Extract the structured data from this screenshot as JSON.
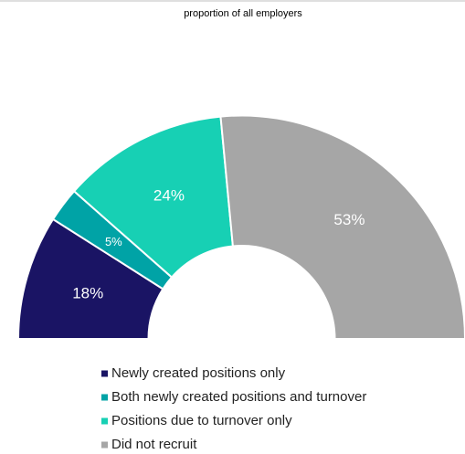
{
  "chart_data": {
    "type": "pie",
    "title": "proportion of all employers",
    "categories": [
      "Newly created positions only",
      "Both newly created positions and turnover",
      "Positions due to turnover only",
      "Did not recruit"
    ],
    "values": [
      18,
      5,
      24,
      53
    ],
    "value_labels": [
      "18%",
      "5%",
      "24%",
      "53%"
    ],
    "colors": [
      "#1a1464",
      "#00a3a6",
      "#17d0b4",
      "#a6a6a6"
    ]
  }
}
